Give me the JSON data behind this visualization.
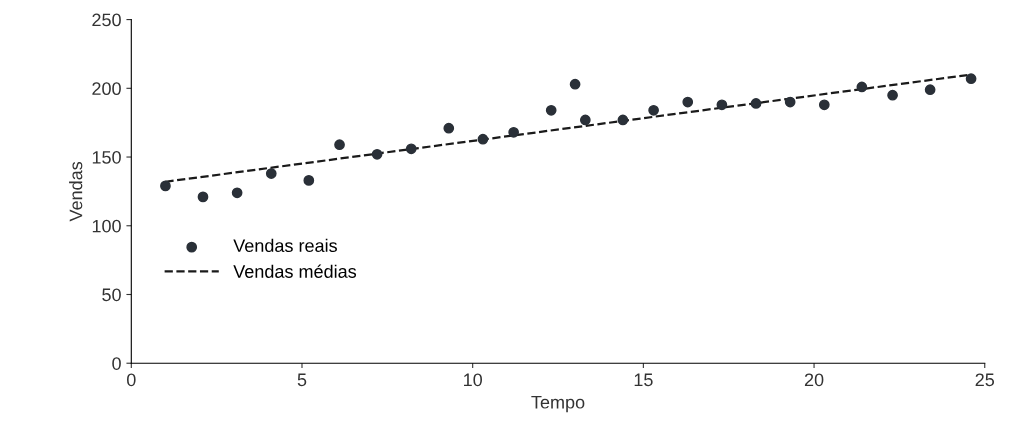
{
  "chart_data": {
    "type": "scatter",
    "xlabel": "Tempo",
    "ylabel": "Vendas",
    "xlim": [
      0,
      25
    ],
    "xticks": [
      0,
      5,
      10,
      15,
      20,
      25
    ],
    "ylim": [
      0,
      250
    ],
    "yticks": [
      0,
      50,
      100,
      150,
      200,
      250
    ],
    "grid": false,
    "legend": "left",
    "series": [
      {
        "name": "Vendas reais",
        "marker": "circle",
        "color": "#2a3038",
        "x": [
          1.0,
          2.1,
          3.1,
          4.1,
          5.2,
          6.1,
          7.2,
          8.2,
          9.3,
          10.3,
          11.2,
          12.3,
          13.0,
          13.3,
          14.4,
          15.3,
          16.3,
          17.3,
          18.3,
          19.3,
          20.3,
          21.4,
          22.3,
          23.4,
          24.6
        ],
        "values": [
          129,
          121,
          124,
          138,
          133,
          159,
          152,
          156,
          171,
          163,
          168,
          184,
          203,
          177,
          177,
          184,
          190,
          188,
          189,
          190,
          188,
          201,
          195,
          199,
          207
        ]
      },
      {
        "name": "Vendas médias",
        "type": "line",
        "line_style": "dashed",
        "marker": "none",
        "color": "#1a1a1a",
        "x": [
          1.0,
          24.6
        ],
        "values": [
          132,
          210
        ]
      }
    ]
  }
}
